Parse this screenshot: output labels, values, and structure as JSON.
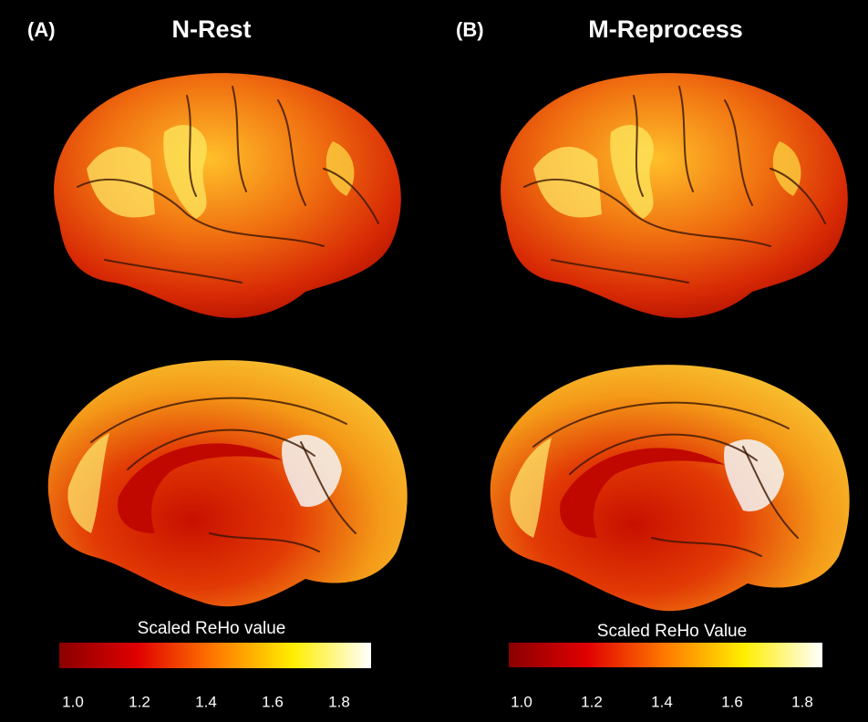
{
  "panels": [
    {
      "label": "(A)",
      "title": "N-Rest",
      "colorbar": {
        "title": "Scaled ReHo value",
        "ticks": [
          "1.0",
          "1.2",
          "1.4",
          "1.6",
          "1.8"
        ]
      }
    },
    {
      "label": "(B)",
      "title": "M-Reprocess",
      "colorbar": {
        "title": "Scaled ReHo Value",
        "ticks": [
          "1.0",
          "1.2",
          "1.4",
          "1.6",
          "1.8"
        ]
      }
    }
  ]
}
